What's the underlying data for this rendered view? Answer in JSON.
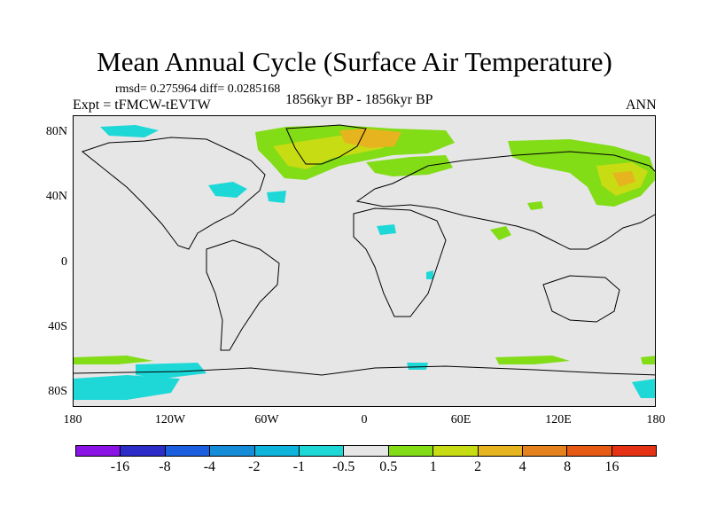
{
  "title": "Mean Annual Cycle (Surface Air Temperature)",
  "stats": "rmsd= 0.275964 diff= 0.0285168",
  "experiment": "Expt = tFMCW-tEVTW",
  "period": "1856kyr BP - 1856kyr BP",
  "season": "ANN",
  "lat_ticks": [
    "80N",
    "40N",
    "0",
    "40S",
    "80S"
  ],
  "lon_ticks": [
    "180",
    "120W",
    "60W",
    "0",
    "60E",
    "120E",
    "180"
  ],
  "colorbar": {
    "labels": [
      "-16",
      "-8",
      "-4",
      "-2",
      "-1",
      "-0.5",
      "0.5",
      "1",
      "2",
      "4",
      "8",
      "16"
    ],
    "colors": [
      "#8a14e6",
      "#2c2cc8",
      "#1b5fe0",
      "#148cd8",
      "#0fb4dc",
      "#1ed8d8",
      "#e6e6e6",
      "#82dc16",
      "#c8dc14",
      "#e6b41e",
      "#e6821e",
      "#e65a14",
      "#e63214"
    ]
  }
}
